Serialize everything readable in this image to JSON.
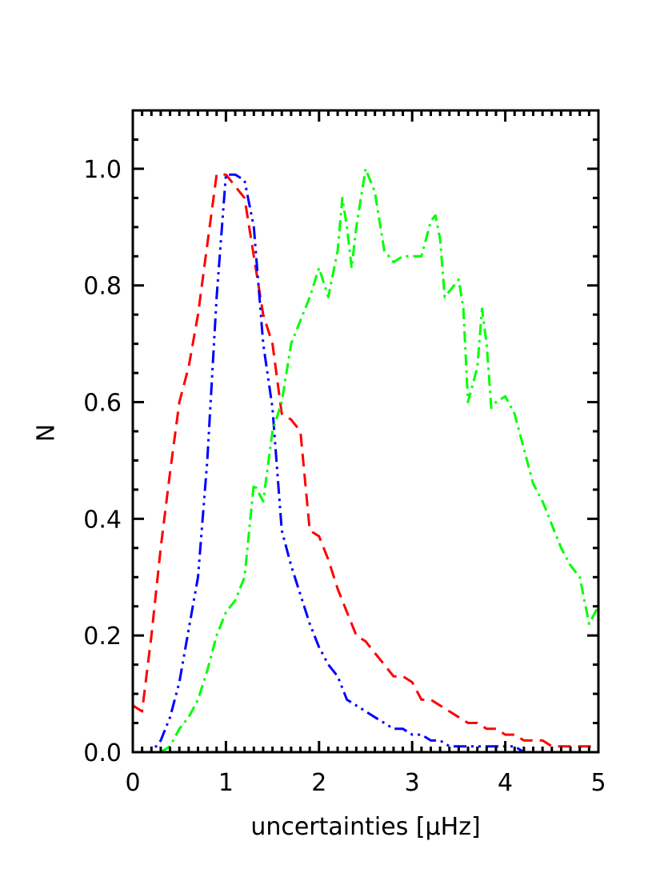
{
  "chart_data": {
    "type": "line",
    "title": "",
    "xlabel": "uncertainties [μHz]",
    "ylabel": "N",
    "xlim": [
      0,
      5
    ],
    "ylim": [
      0,
      1.1
    ],
    "x_ticks": [
      "0",
      "1",
      "2",
      "3",
      "4",
      "5"
    ],
    "y_ticks": [
      "0.0",
      "0.2",
      "0.4",
      "0.6",
      "0.8",
      "1.0"
    ],
    "x_tick_values": [
      0,
      1,
      2,
      3,
      4,
      5
    ],
    "y_tick_values": [
      0,
      0.2,
      0.4,
      0.6,
      0.8,
      1.0
    ],
    "grid": false,
    "legend": "none",
    "series": [
      {
        "color": "#ff0000",
        "dash": "dashed",
        "points": [
          [
            0,
            0.08
          ],
          [
            0.1,
            0.07
          ],
          [
            0.2,
            0.2
          ],
          [
            0.3,
            0.35
          ],
          [
            0.4,
            0.48
          ],
          [
            0.5,
            0.6
          ],
          [
            0.6,
            0.66
          ],
          [
            0.7,
            0.75
          ],
          [
            0.8,
            0.87
          ],
          [
            0.9,
            0.99
          ],
          [
            1.0,
            0.99
          ],
          [
            1.1,
            0.97
          ],
          [
            1.2,
            0.95
          ],
          [
            1.3,
            0.85
          ],
          [
            1.4,
            0.75
          ],
          [
            1.5,
            0.7
          ],
          [
            1.6,
            0.58
          ],
          [
            1.7,
            0.57
          ],
          [
            1.8,
            0.55
          ],
          [
            1.9,
            0.38
          ],
          [
            2.0,
            0.37
          ],
          [
            2.1,
            0.33
          ],
          [
            2.2,
            0.28
          ],
          [
            2.3,
            0.24
          ],
          [
            2.4,
            0.2
          ],
          [
            2.5,
            0.19
          ],
          [
            2.6,
            0.17
          ],
          [
            2.7,
            0.15
          ],
          [
            2.8,
            0.13
          ],
          [
            2.9,
            0.13
          ],
          [
            3.0,
            0.12
          ],
          [
            3.1,
            0.09
          ],
          [
            3.2,
            0.09
          ],
          [
            3.3,
            0.08
          ],
          [
            3.4,
            0.07
          ],
          [
            3.5,
            0.06
          ],
          [
            3.6,
            0.05
          ],
          [
            3.7,
            0.05
          ],
          [
            3.8,
            0.04
          ],
          [
            3.9,
            0.04
          ],
          [
            4.0,
            0.03
          ],
          [
            4.1,
            0.03
          ],
          [
            4.2,
            0.02
          ],
          [
            4.3,
            0.02
          ],
          [
            4.4,
            0.02
          ],
          [
            4.5,
            0.01
          ],
          [
            4.6,
            0.01
          ],
          [
            4.7,
            0.01
          ],
          [
            4.8,
            0.01
          ],
          [
            4.9,
            0.01
          ],
          [
            5.0,
            0.01
          ]
        ]
      },
      {
        "color": "#0000ff",
        "dash": "dash-dot-dot",
        "points": [
          [
            0,
            0
          ],
          [
            0.1,
            0
          ],
          [
            0.2,
            0
          ],
          [
            0.3,
            0.02
          ],
          [
            0.4,
            0.06
          ],
          [
            0.5,
            0.12
          ],
          [
            0.6,
            0.21
          ],
          [
            0.7,
            0.3
          ],
          [
            0.8,
            0.5
          ],
          [
            0.9,
            0.78
          ],
          [
            1.0,
            0.99
          ],
          [
            1.1,
            0.99
          ],
          [
            1.2,
            0.98
          ],
          [
            1.3,
            0.9
          ],
          [
            1.4,
            0.7
          ],
          [
            1.5,
            0.59
          ],
          [
            1.6,
            0.38
          ],
          [
            1.7,
            0.32
          ],
          [
            1.8,
            0.27
          ],
          [
            1.9,
            0.22
          ],
          [
            2.0,
            0.18
          ],
          [
            2.1,
            0.15
          ],
          [
            2.2,
            0.13
          ],
          [
            2.3,
            0.09
          ],
          [
            2.4,
            0.08
          ],
          [
            2.5,
            0.07
          ],
          [
            2.6,
            0.06
          ],
          [
            2.7,
            0.05
          ],
          [
            2.8,
            0.04
          ],
          [
            2.9,
            0.04
          ],
          [
            3.0,
            0.03
          ],
          [
            3.1,
            0.03
          ],
          [
            3.2,
            0.02
          ],
          [
            3.3,
            0.02
          ],
          [
            3.4,
            0.01
          ],
          [
            3.5,
            0.01
          ],
          [
            3.6,
            0.01
          ],
          [
            3.7,
            0.01
          ],
          [
            3.8,
            0.01
          ],
          [
            3.9,
            0.01
          ],
          [
            4.0,
            0.01
          ],
          [
            4.1,
            0.01
          ],
          [
            4.2,
            0
          ],
          [
            4.3,
            0
          ],
          [
            4.4,
            0
          ],
          [
            4.5,
            0
          ],
          [
            4.6,
            0
          ],
          [
            4.7,
            0
          ],
          [
            4.8,
            0
          ],
          [
            4.9,
            0
          ],
          [
            5.0,
            0
          ]
        ]
      },
      {
        "color": "#00ff00",
        "dash": "dash-dot",
        "points": [
          [
            0.3,
            0
          ],
          [
            0.4,
            0.01
          ],
          [
            0.5,
            0.04
          ],
          [
            0.6,
            0.06
          ],
          [
            0.7,
            0.09
          ],
          [
            0.8,
            0.14
          ],
          [
            0.9,
            0.2
          ],
          [
            1.0,
            0.24
          ],
          [
            1.1,
            0.26
          ],
          [
            1.2,
            0.3
          ],
          [
            1.3,
            0.46
          ],
          [
            1.4,
            0.43
          ],
          [
            1.5,
            0.55
          ],
          [
            1.6,
            0.6
          ],
          [
            1.7,
            0.7
          ],
          [
            1.8,
            0.74
          ],
          [
            1.9,
            0.78
          ],
          [
            2.0,
            0.83
          ],
          [
            2.1,
            0.78
          ],
          [
            2.2,
            0.86
          ],
          [
            2.25,
            0.95
          ],
          [
            2.3,
            0.9
          ],
          [
            2.35,
            0.83
          ],
          [
            2.4,
            0.9
          ],
          [
            2.5,
            1.0
          ],
          [
            2.6,
            0.96
          ],
          [
            2.7,
            0.86
          ],
          [
            2.8,
            0.84
          ],
          [
            2.9,
            0.85
          ],
          [
            3.0,
            0.85
          ],
          [
            3.1,
            0.85
          ],
          [
            3.2,
            0.91
          ],
          [
            3.25,
            0.92
          ],
          [
            3.3,
            0.88
          ],
          [
            3.35,
            0.78
          ],
          [
            3.4,
            0.79
          ],
          [
            3.5,
            0.81
          ],
          [
            3.55,
            0.76
          ],
          [
            3.6,
            0.6
          ],
          [
            3.7,
            0.66
          ],
          [
            3.75,
            0.76
          ],
          [
            3.8,
            0.7
          ],
          [
            3.85,
            0.59
          ],
          [
            3.9,
            0.6
          ],
          [
            4.0,
            0.61
          ],
          [
            4.1,
            0.58
          ],
          [
            4.2,
            0.52
          ],
          [
            4.3,
            0.46
          ],
          [
            4.4,
            0.43
          ],
          [
            4.5,
            0.39
          ],
          [
            4.6,
            0.35
          ],
          [
            4.7,
            0.32
          ],
          [
            4.8,
            0.3
          ],
          [
            4.9,
            0.22
          ],
          [
            5.0,
            0.25
          ]
        ]
      }
    ]
  }
}
